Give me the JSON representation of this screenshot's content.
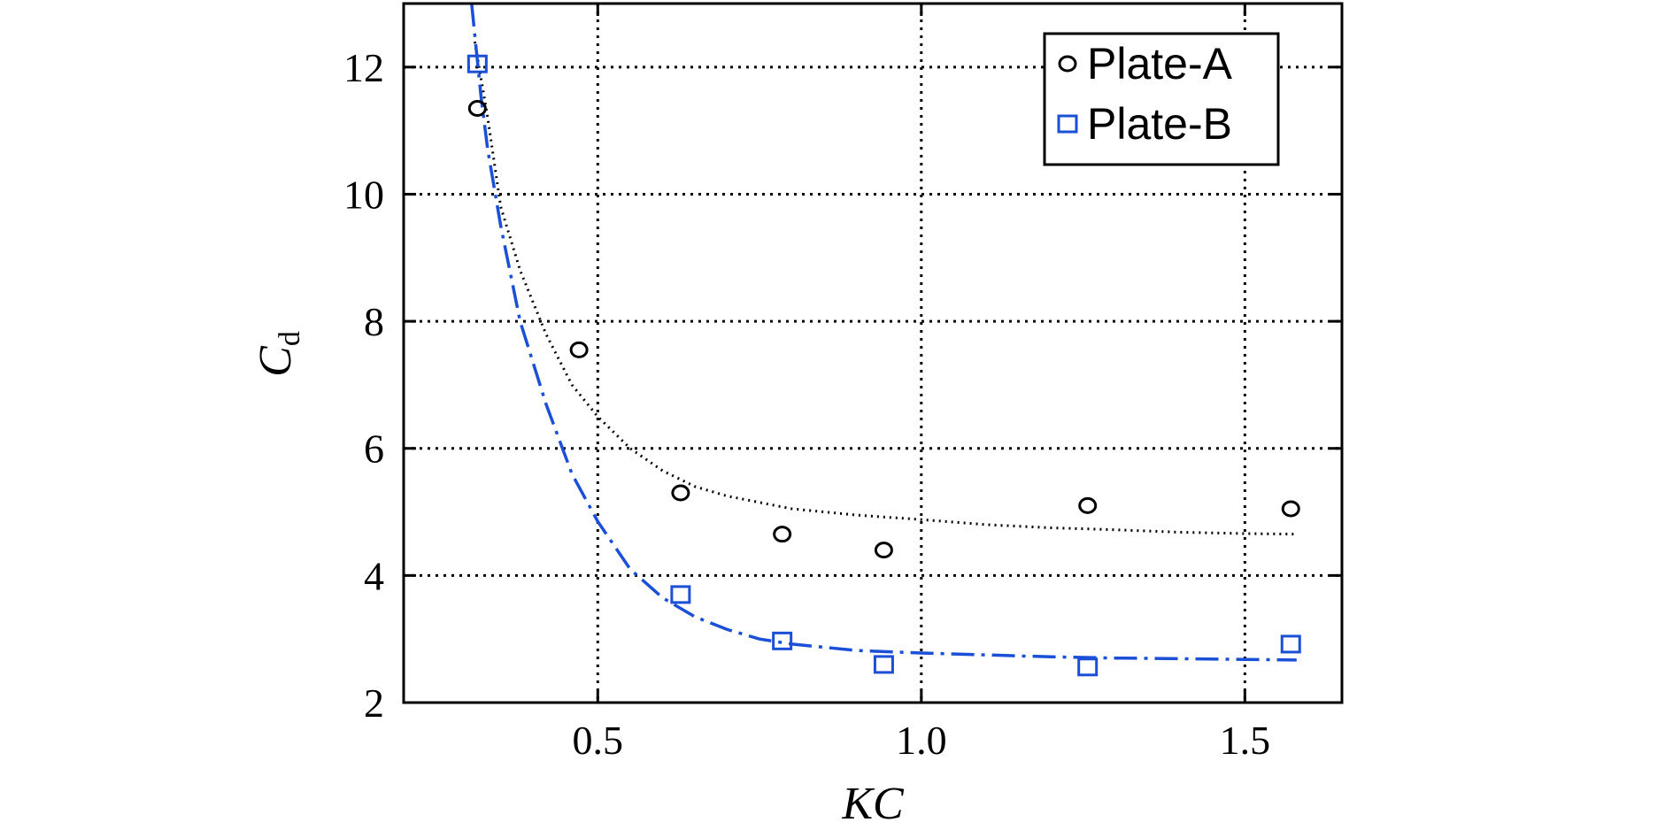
{
  "chart_data": {
    "type": "scatter",
    "title": "",
    "xlabel": "KC",
    "ylabel": {
      "main": "C",
      "sub": "d"
    },
    "xlim": [
      0.2,
      1.65
    ],
    "ylim": [
      2,
      13
    ],
    "xticks": [
      0.5,
      1.0,
      1.5
    ],
    "xtick_labels": [
      "0.5",
      "1.0",
      "1.5"
    ],
    "yticks": [
      2,
      4,
      6,
      8,
      10,
      12
    ],
    "ytick_labels": [
      "2",
      "4",
      "6",
      "8",
      "10",
      "12"
    ],
    "grid": true,
    "legend_position": "top-right",
    "series": [
      {
        "name": "Plate-A",
        "marker": "circle",
        "color": "#000000",
        "x": [
          0.314,
          0.471,
          0.628,
          0.785,
          0.942,
          1.257,
          1.571
        ],
        "y": [
          11.35,
          7.55,
          5.3,
          4.65,
          4.4,
          5.1,
          5.05
        ],
        "fit": {
          "style": "dotted",
          "x": [
            0.31,
            0.33,
            0.35,
            0.38,
            0.42,
            0.46,
            0.5,
            0.55,
            0.6,
            0.65,
            0.7,
            0.75,
            0.8,
            0.9,
            1.0,
            1.1,
            1.2,
            1.3,
            1.4,
            1.5,
            1.58
          ],
          "y": [
            12.4,
            11.2,
            9.8,
            8.8,
            7.8,
            7.0,
            6.5,
            6.0,
            5.65,
            5.4,
            5.25,
            5.15,
            5.05,
            4.95,
            4.88,
            4.8,
            4.75,
            4.72,
            4.68,
            4.66,
            4.65
          ]
        }
      },
      {
        "name": "Plate-B",
        "marker": "square",
        "color": "#1a4fd6",
        "x": [
          0.314,
          0.628,
          0.785,
          0.942,
          1.257,
          1.571
        ],
        "y": [
          12.05,
          3.7,
          2.97,
          2.6,
          2.56,
          2.92
        ],
        "fit": {
          "style": "dashdot",
          "x": [
            0.305,
            0.31,
            0.32,
            0.33,
            0.35,
            0.38,
            0.42,
            0.46,
            0.5,
            0.55,
            0.6,
            0.65,
            0.7,
            0.75,
            0.8,
            0.9,
            1.0,
            1.1,
            1.2,
            1.3,
            1.4,
            1.5,
            1.58
          ],
          "y": [
            13.0,
            12.5,
            11.5,
            10.7,
            9.5,
            8.0,
            6.7,
            5.6,
            4.85,
            4.1,
            3.65,
            3.35,
            3.15,
            3.0,
            2.92,
            2.82,
            2.78,
            2.75,
            2.72,
            2.7,
            2.69,
            2.68,
            2.67
          ]
        }
      }
    ]
  }
}
